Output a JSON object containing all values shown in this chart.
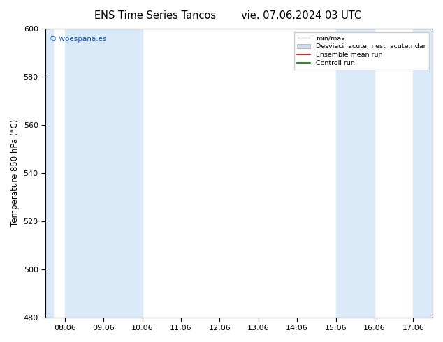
{
  "title": "ENS Time Series Tancos",
  "title_right": "vie. 07.06.2024 03 UTC",
  "ylabel": "Temperature 850 hPa (°C)",
  "ylim": [
    480,
    600
  ],
  "yticks": [
    480,
    500,
    520,
    540,
    560,
    580,
    600
  ],
  "xtick_labels": [
    "08.06",
    "09.06",
    "10.06",
    "11.06",
    "12.06",
    "13.06",
    "14.06",
    "15.06",
    "16.06",
    "17.06"
  ],
  "background_color": "#ffffff",
  "plot_bg_color": "#ffffff",
  "shaded_color": "#daeaf8",
  "legend_labels": [
    "min/max",
    "Desviaci  acute;n est  acute;ndar",
    "Ensemble mean run",
    "Controll run"
  ],
  "legend_line_colors": [
    "#aaaaaa",
    "#cccccc",
    "#ff0000",
    "#007700"
  ],
  "watermark": "© woespana.es",
  "watermark_color": "#1155cc",
  "title_fontsize": 10.5,
  "tick_fontsize": 8,
  "ylabel_fontsize": 8.5
}
